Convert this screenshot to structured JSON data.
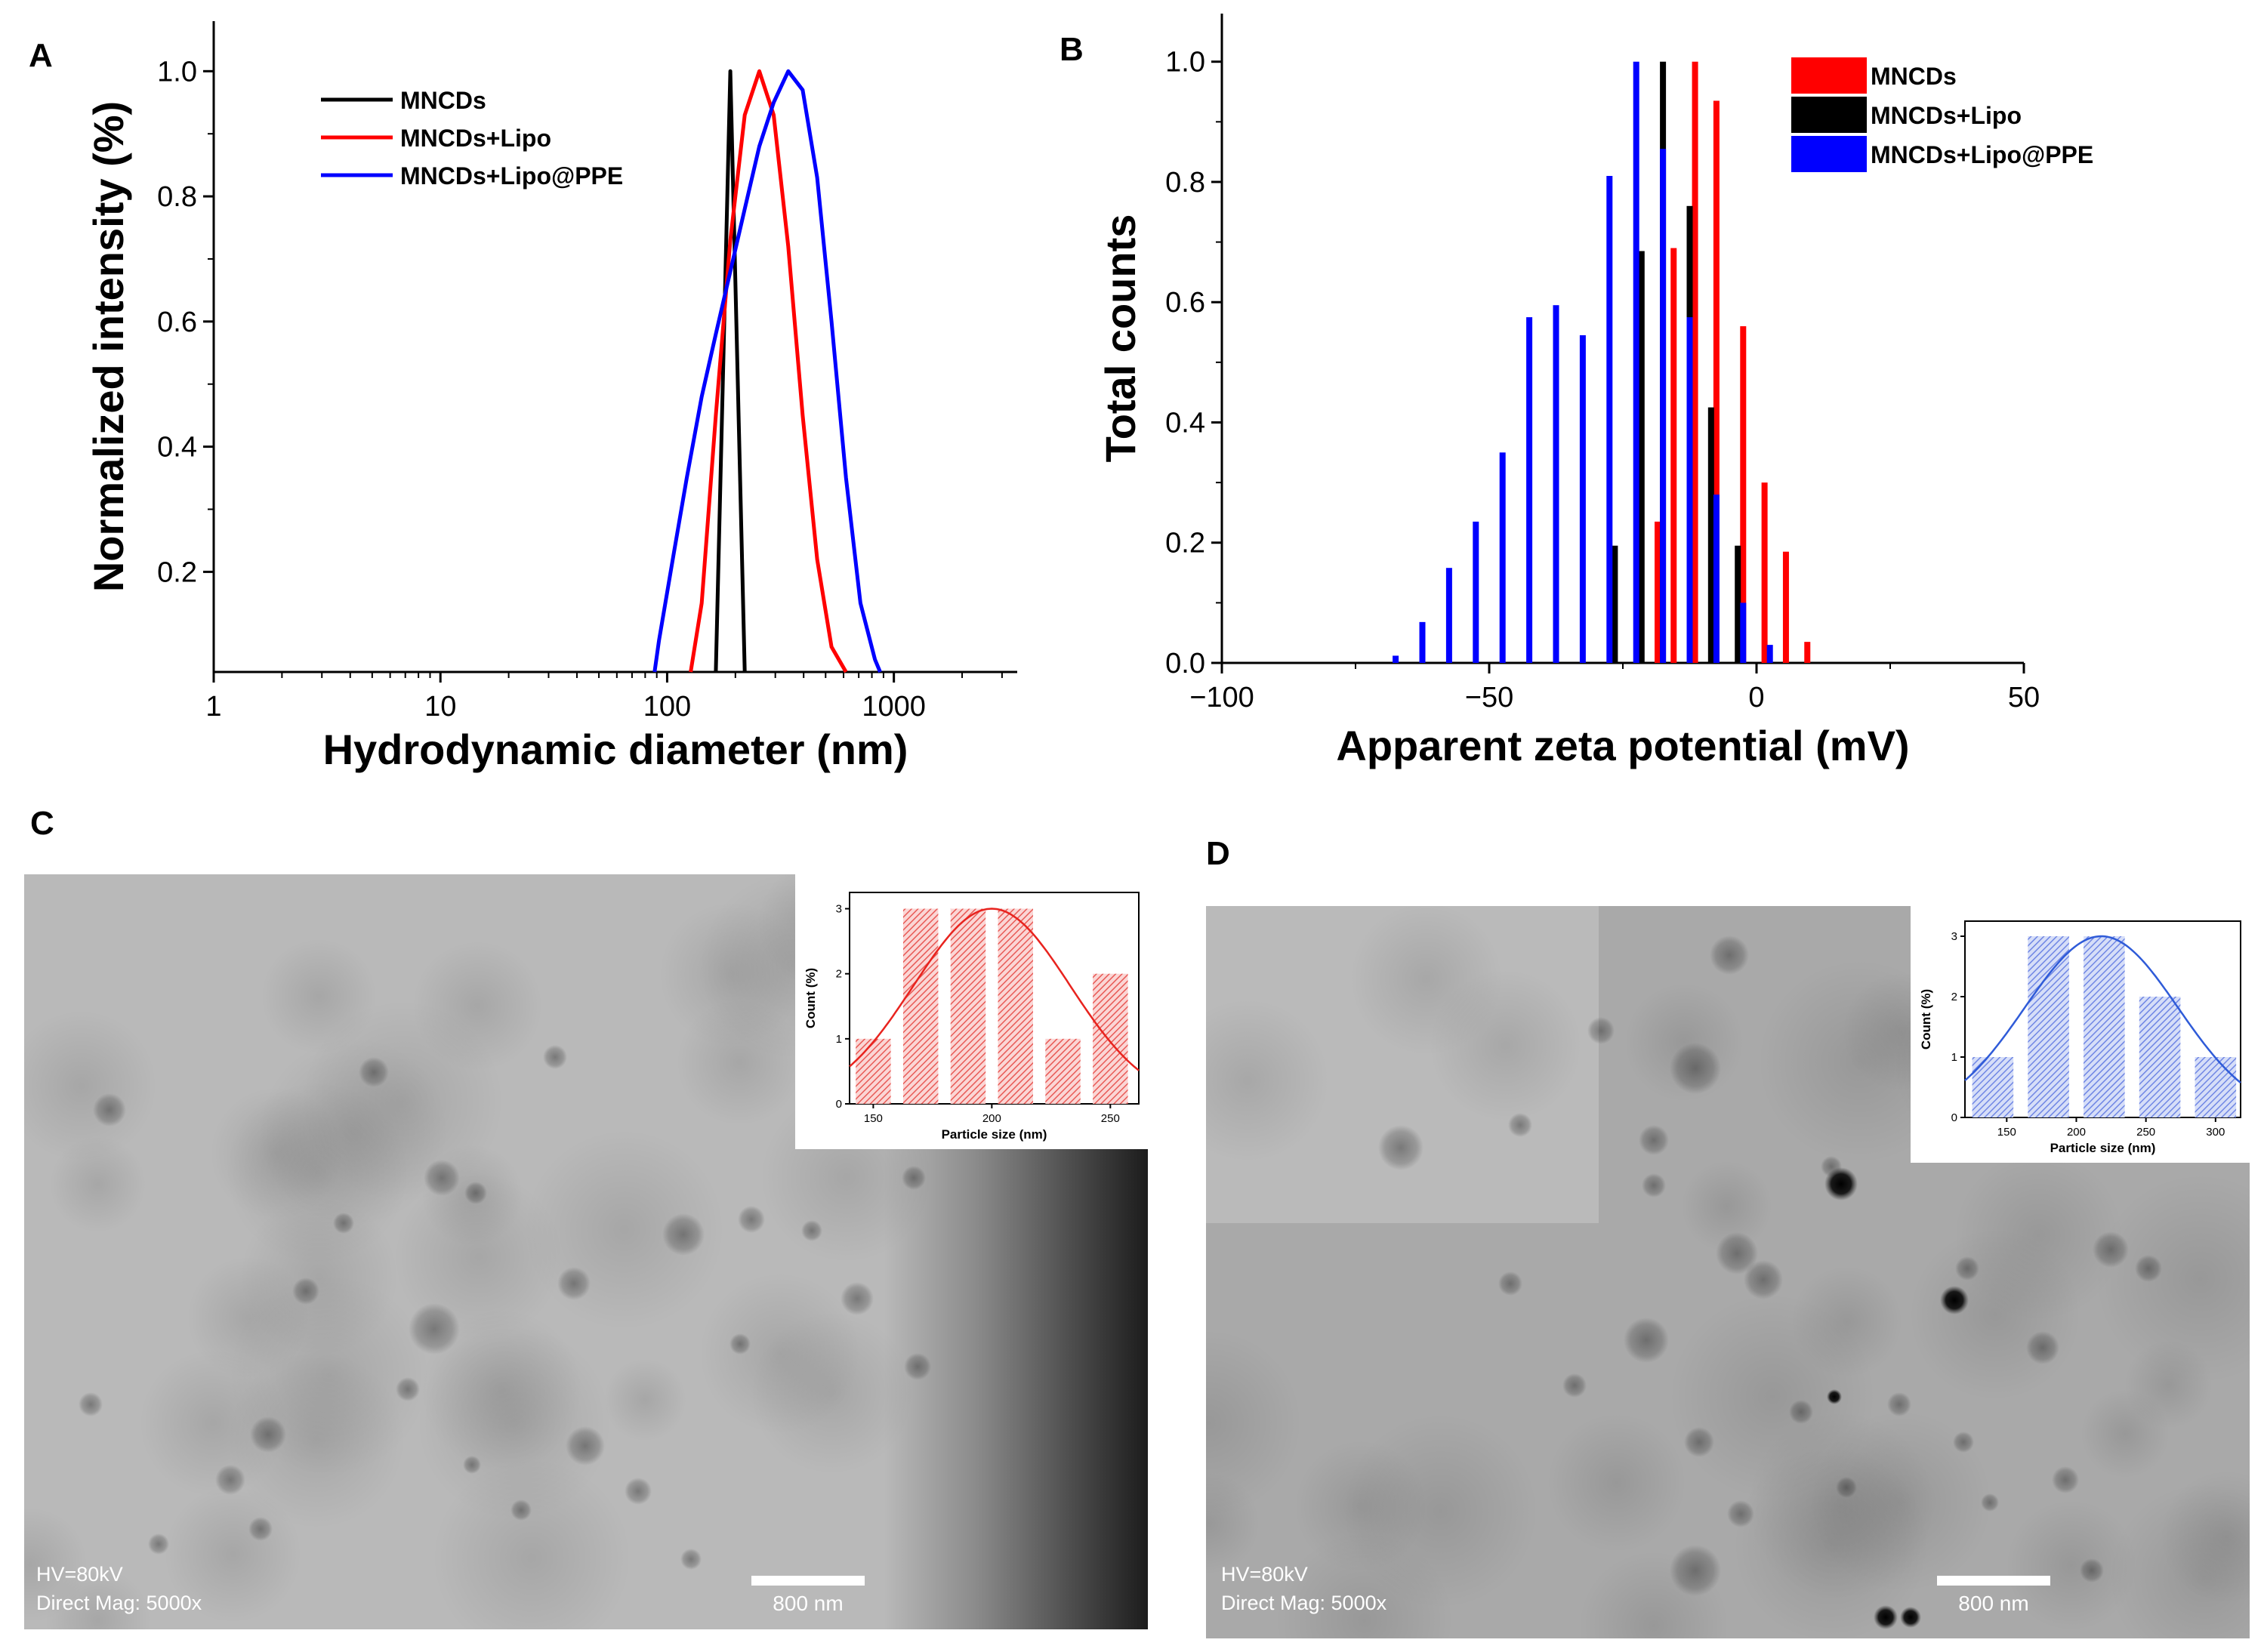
{
  "figure": {
    "panels": [
      "A",
      "B",
      "C",
      "D"
    ]
  },
  "colors": {
    "red": "#ff0000",
    "black": "#000000",
    "blue": "#0000ff",
    "inset_red_line": "#e8231e",
    "inset_red_fill": "#f08a88",
    "inset_blue_line": "#2f5bd8",
    "inset_blue_fill": "#93a6ec"
  },
  "chart_data": [
    {
      "panel": "A",
      "type": "line",
      "xscale": "log",
      "xlabel": "Hydrodynamic diameter (nm)",
      "ylabel": "Normalized intensity (%)",
      "xlim": [
        1,
        3500
      ],
      "ylim": [
        0.04,
        1.08
      ],
      "xticks": [
        1,
        10,
        100,
        1000
      ],
      "xtick_labels": [
        "1",
        "10",
        "100",
        "1000"
      ],
      "yticks": [
        0.2,
        0.4,
        0.6,
        0.8,
        1.0
      ],
      "ytick_labels": [
        "0.2",
        "0.4",
        "0.6",
        "0.8",
        "1.0"
      ],
      "legend": [
        "MNCDs",
        "MNCDs+Lipo",
        "MNCDs+Lipo@PPE"
      ],
      "legend_position": "top-left",
      "series": [
        {
          "name": "MNCDs",
          "color": "#000000",
          "x": [
            164,
            190,
            220
          ],
          "y": [
            0.04,
            1.0,
            0.04
          ]
        },
        {
          "name": "MNCDs+Lipo",
          "color": "#ff0000",
          "x": [
            127,
            142,
            164,
            190,
            220,
            255,
            295,
            342,
            396,
            459,
            531,
            615
          ],
          "y": [
            0.04,
            0.15,
            0.45,
            0.73,
            0.93,
            1.0,
            0.93,
            0.72,
            0.45,
            0.22,
            0.08,
            0.04
          ]
        },
        {
          "name": "MNCDs+Lipo@PPE",
          "color": "#0000ff",
          "x": [
            88,
            92,
            107,
            122,
            142,
            164,
            190,
            220,
            255,
            295,
            342,
            396,
            459,
            531,
            615,
            712,
            825,
            870
          ],
          "y": [
            0.04,
            0.09,
            0.23,
            0.35,
            0.48,
            0.58,
            0.68,
            0.78,
            0.88,
            0.95,
            1.0,
            0.97,
            0.83,
            0.6,
            0.35,
            0.15,
            0.06,
            0.04
          ]
        }
      ]
    },
    {
      "panel": "B",
      "type": "bar",
      "xlabel": "Apparent zeta potential (mV)",
      "ylabel": "Total counts",
      "xlim": [
        -100,
        50
      ],
      "ylim": [
        0,
        1.08
      ],
      "xticks": [
        -100,
        -50,
        0,
        50
      ],
      "xtick_labels": [
        "−100",
        "−50",
        "0",
        "50"
      ],
      "yticks": [
        0.0,
        0.2,
        0.4,
        0.6,
        0.8,
        1.0
      ],
      "ytick_labels": [
        "0.0",
        "0.2",
        "0.4",
        "0.6",
        "0.8",
        "1.0"
      ],
      "legend": [
        "MNCDs",
        "MNCDs+Lipo",
        "MNCDs+Lipo@PPE"
      ],
      "legend_position": "top-right",
      "series": [
        {
          "name": "MNCDs",
          "color": "#ff0000",
          "x": [
            -18.5,
            -15.5,
            -11.5,
            -7.5,
            -2.5,
            1.5,
            5.5,
            9.5
          ],
          "y": [
            0.235,
            0.69,
            1.0,
            0.935,
            0.56,
            0.3,
            0.185,
            0.035
          ]
        },
        {
          "name": "MNCDs+Lipo",
          "color": "#000000",
          "x": [
            -26.5,
            -21.5,
            -17.5,
            -12.5,
            -8.5,
            -3.5
          ],
          "y": [
            0.195,
            0.685,
            1.0,
            0.76,
            0.425,
            0.195
          ]
        },
        {
          "name": "MNCDs+Lipo@PPE",
          "color": "#0000ff",
          "x": [
            -67.5,
            -62.5,
            -57.5,
            -52.5,
            -47.5,
            -42.5,
            -37.5,
            -32.5,
            -27.5,
            -22.5,
            -17.5,
            -12.5,
            -7.5,
            -2.5,
            2.5
          ],
          "y": [
            0.012,
            0.068,
            0.158,
            0.235,
            0.35,
            0.575,
            0.595,
            0.545,
            0.81,
            1.0,
            0.855,
            0.575,
            0.28,
            0.1,
            0.03
          ]
        }
      ]
    },
    {
      "panel": "C-inset",
      "type": "bar",
      "xlabel": "Particle size (nm)",
      "ylabel": "Count (%)",
      "xlim": [
        140,
        262
      ],
      "ylim": [
        0,
        3.25
      ],
      "xticks": [
        150,
        200,
        250
      ],
      "xtick_labels": [
        "150",
        "200",
        "250"
      ],
      "yticks": [
        0,
        1,
        2,
        3
      ],
      "ytick_labels": [
        "0",
        "1",
        "2",
        "3"
      ],
      "categories": [
        150,
        170,
        190,
        210,
        230,
        250
      ],
      "values": [
        1,
        3,
        3,
        3,
        1,
        2
      ],
      "fit": {
        "type": "gaussian",
        "mean": 200,
        "sd": 33,
        "amplitude": 3
      }
    },
    {
      "panel": "D-inset",
      "type": "bar",
      "xlabel": "Particle size (nm)",
      "ylabel": "Count (%)",
      "xlim": [
        120,
        318
      ],
      "ylim": [
        0,
        3.25
      ],
      "xticks": [
        150,
        200,
        250,
        300
      ],
      "xtick_labels": [
        "150",
        "200",
        "250",
        "300"
      ],
      "yticks": [
        0,
        1,
        2,
        3
      ],
      "ytick_labels": [
        "0",
        "1",
        "2",
        "3"
      ],
      "categories": [
        140,
        180,
        220,
        260,
        300
      ],
      "values": [
        1,
        3,
        3,
        2,
        1
      ],
      "fit": {
        "type": "gaussian",
        "mean": 218,
        "sd": 55,
        "amplitude": 3
      }
    }
  ],
  "micrographs": {
    "C": {
      "label": "C",
      "hv": "HV=80kV",
      "mag": "Direct Mag: 5000x",
      "scalebar": "800 nm"
    },
    "D": {
      "label": "D",
      "hv": "HV=80kV",
      "mag": "Direct Mag: 5000x",
      "scalebar": "800 nm"
    }
  }
}
